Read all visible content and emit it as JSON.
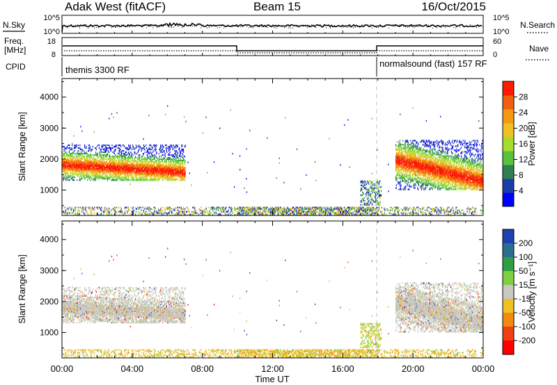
{
  "header": {
    "title_left": "Adak West (fitACF)",
    "title_center": "Beam 15",
    "title_right": "16/Oct/2015"
  },
  "top_panels": {
    "nsky_label": "N.Sky",
    "nsearch_label": "N.Search",
    "nsky_ticks": [
      "10^5",
      "10^0"
    ],
    "nsearch_ticks": [
      "10^5",
      "10^0"
    ],
    "freq_label_line1": "Freq.",
    "freq_label_line2": "[MHz]",
    "freq_ticks": [
      "18",
      "8"
    ],
    "nave_label": "Nave",
    "nave_ticks": [
      "60",
      "0"
    ],
    "cpid_label": "CPID",
    "cpid_left": "themis 3300 RF",
    "cpid_right": "normalsound (fast) 157 RF"
  },
  "chart_data": [
    {
      "type": "heatmap",
      "name": "power",
      "ylabel": "Slant Range [km]",
      "yticks": [
        "1000",
        "2000",
        "3000",
        "4000"
      ],
      "ylim": [
        180,
        4600
      ],
      "xlim": [
        0,
        24
      ],
      "colorbar_label": "Power [dB]",
      "colorbar_ticks": [
        "4",
        "8",
        "12",
        "16",
        "20",
        "24",
        "28"
      ],
      "colorbar_colors": [
        "#0000ff",
        "#1a3ea8",
        "#2f7f55",
        "#58c23a",
        "#a6dd2c",
        "#f0c020",
        "#f59a10",
        "#f06010",
        "#ff1a00"
      ],
      "echo_regions": [
        {
          "t_start": 0.0,
          "t_end": 7.0,
          "r_min": 1300,
          "r_max": 2450,
          "peak_range_start": 1800,
          "peak_range_end": 1550
        },
        {
          "t_start": 19.0,
          "t_end": 24.0,
          "r_min": 1000,
          "r_max": 2600,
          "peak_range_start": 1950,
          "peak_range_end": 1250
        }
      ]
    },
    {
      "type": "heatmap",
      "name": "velocity",
      "xlabel": "Time UT",
      "ylabel": "Slant Range [km]",
      "xticks": [
        "00:00",
        "04:00",
        "08:00",
        "12:00",
        "16:00",
        "20:00",
        "00:00"
      ],
      "yticks": [
        "1000",
        "2000",
        "3000",
        "4000"
      ],
      "ylim": [
        180,
        4600
      ],
      "xlim": [
        0,
        24
      ],
      "colorbar_label": "Velocity [m s⁻¹]",
      "colorbar_ticks": [
        "200",
        "100",
        "50",
        "15",
        "-15",
        "-50",
        "-100",
        "-200"
      ],
      "colorbar_colors": [
        "#2040b0",
        "#2c6e90",
        "#2f9e40",
        "#7fd040",
        "#c8c8c0",
        "#f0c020",
        "#f08a10",
        "#f04010",
        "#ff0000"
      ]
    }
  ],
  "time_axis": {
    "xlabel": "Time UT",
    "ticks": [
      "00:00",
      "04:00",
      "08:00",
      "12:00",
      "16:00",
      "20:00",
      "00:00"
    ]
  },
  "colors": {
    "echo_gray": "#c8c8c0",
    "dashed_line": "#c0c0c0"
  }
}
